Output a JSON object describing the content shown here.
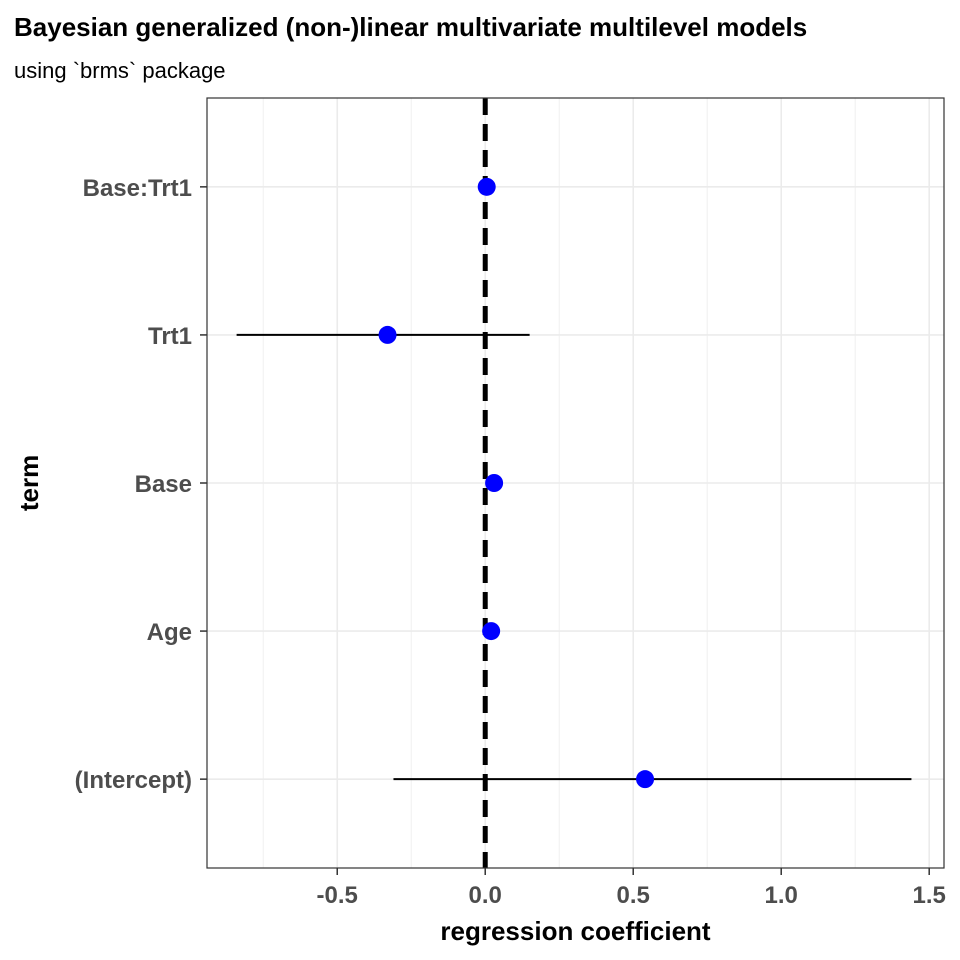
{
  "chart_data": {
    "type": "scatter",
    "title": "Bayesian generalized (non-)linear multivariate multilevel models",
    "subtitle": "using `brms` package",
    "xlabel": "regression coefficient",
    "ylabel": "term",
    "xlim": [
      -0.94,
      1.55
    ],
    "x_ticks": [
      -0.5,
      0.0,
      0.5,
      1.0,
      1.5
    ],
    "x_tick_labels": [
      "-0.5",
      "0.0",
      "0.5",
      "1.0",
      "1.5"
    ],
    "categories": [
      "(Intercept)",
      "Age",
      "Base",
      "Trt1",
      "Base:Trt1"
    ],
    "estimates": [
      0.54,
      0.02,
      0.03,
      -0.33,
      0.005
    ],
    "conf_low": [
      -0.31,
      0.005,
      0.02,
      -0.84,
      -0.005
    ],
    "conf_high": [
      1.44,
      0.035,
      0.04,
      0.15,
      0.015
    ],
    "reference_line_x": 0,
    "grid": true,
    "point_color": "#0000FF",
    "errorbar_color": "#000000",
    "reference_line_color": "#000000"
  }
}
